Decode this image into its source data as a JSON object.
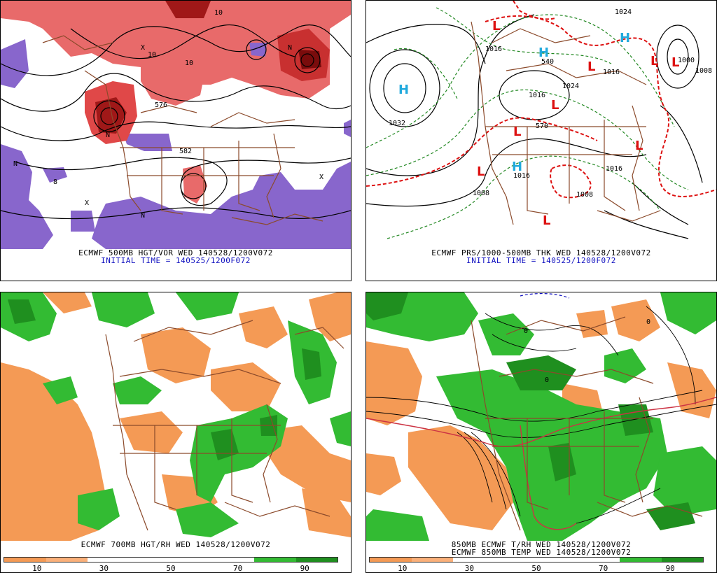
{
  "panels": {
    "p1": {
      "caption": "ECMWF 500MB HGT/VOR WED 140528/1200V072",
      "subcaption": "INITIAL TIME = 140525/1200F072",
      "labels": [
        "N",
        "10",
        "10",
        "10",
        "N",
        "N",
        "N",
        "X",
        "X",
        "X",
        "582",
        "576",
        "8"
      ]
    },
    "p2": {
      "caption": "ECMWF PRS/1000-500MB THK WED 140528/1200V072",
      "subcaption": "INITIAL TIME = 140525/1200F072",
      "labels": [
        "1032",
        "1016",
        "1016",
        "1016",
        "1024",
        "1008",
        "1008",
        "1016",
        "1016",
        "1024",
        "1000",
        "570",
        "540",
        "1008"
      ],
      "highs": [
        "H",
        "H",
        "H",
        "H"
      ],
      "lows": [
        "L",
        "L",
        "L",
        "L",
        "L",
        "L",
        "L",
        "L",
        "L"
      ]
    },
    "p3": {
      "caption": "ECMWF 700MB HGT/RH WED 140528/1200V072",
      "colorbar": {
        "colors": [
          "#f49a55",
          "#fab07a",
          "#ffffff",
          "#ffffff",
          "#ffffff",
          "#ffffff",
          "#33bb33",
          "#1f8f1f"
        ],
        "ticks": [
          "10",
          "30",
          "50",
          "70",
          "90"
        ]
      }
    },
    "p4": {
      "caption": "850MB ECMWF T/RH WED 140528/1200V072",
      "subcaption": "ECMWF 850MB TEMP WED 140528/1200V072",
      "labels": [
        "0",
        "0",
        "0"
      ],
      "colorbar": {
        "colors": [
          "#f49a55",
          "#fab07a",
          "#ffffff",
          "#ffffff",
          "#ffffff",
          "#ffffff",
          "#33bb33",
          "#1f8f1f"
        ],
        "ticks": [
          "10",
          "30",
          "50",
          "70",
          "90"
        ]
      }
    }
  },
  "colors": {
    "vorticity_positive": "#e04848",
    "vorticity_strong": "#a01818",
    "vorticity_negative": "#8866cc",
    "dry": "#f49a55",
    "moist": "#33bb33",
    "very_moist": "#1f8f1f",
    "borders": "#8b4a2b",
    "high_marker": "#22aadd",
    "low_marker": "#dd1111",
    "thickness_line": "#dd1111",
    "thickness_line2": "#228822"
  }
}
